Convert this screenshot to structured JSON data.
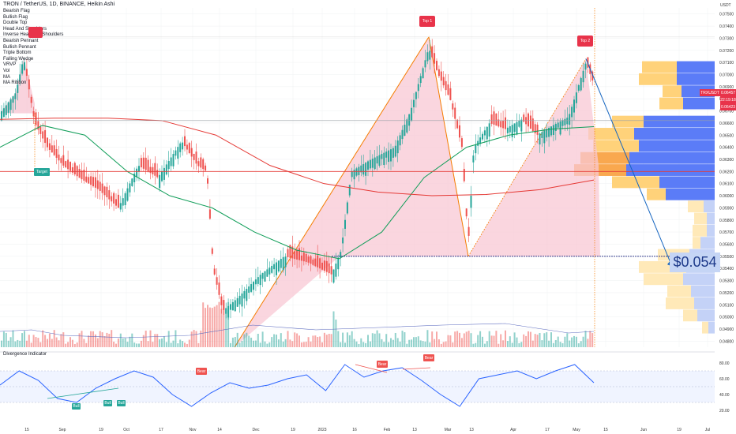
{
  "header": {
    "title": "TRON / TetherUS, 1D, BINANCE, Heikin Ashi"
  },
  "pattern_list": [
    "Bearish Flag",
    "Bullish Flag",
    "Double Top",
    "Head And Shoulders",
    "Inverse Head And Shoulders",
    "Bearish Pennant",
    "Bullish Pennant",
    "Triple Bottom",
    "Falling Wedge",
    "VRVP",
    "Vol",
    "MA",
    "MA Ribbon"
  ],
  "annotations": {
    "top1": "Top 1",
    "top2": "Top 2",
    "target": "Target",
    "target_price": "$0.054",
    "bear": "Bear",
    "bull": "Bull"
  },
  "price_labels": {
    "symbol": "TRXUSDT",
    "last": "0.06457",
    "countdown": "22:19:18",
    "ma": "0.06423"
  },
  "oscillator": {
    "title": "Divergence Indicator",
    "levels": [
      "80.00",
      "60.00",
      "40.00",
      "20.00"
    ]
  },
  "colors": {
    "up": "#26a69a",
    "down": "#ef5350",
    "pattern_fill": "#f8c8d4",
    "pattern_line": "#f57c00",
    "ma_green": "#0f9d58",
    "ma_red": "#e53935",
    "vp_blue": "#5b7cf7",
    "vp_yellow": "#ffd27a",
    "osc_line": "#2962ff"
  },
  "chart_data": {
    "type": "candlestick",
    "title": "TRON / TetherUS, 1D, BINANCE, Heikin Ashi",
    "y_axis": {
      "label": "USDT",
      "ticks": [
        "0.07500",
        "0.07400",
        "0.07300",
        "0.07200",
        "0.07100",
        "0.07000",
        "0.06900",
        "0.06800",
        "0.06700",
        "0.06600",
        "0.06500",
        "0.06400",
        "0.06300",
        "0.06200",
        "0.06100",
        "0.06000",
        "0.05900",
        "0.05800",
        "0.05700",
        "0.05600",
        "0.05500",
        "0.05400",
        "0.05300",
        "0.05200",
        "0.05100",
        "0.05000",
        "0.04900",
        "0.04800"
      ],
      "range": [
        0.0475,
        0.0755
      ]
    },
    "x_axis": {
      "labels": [
        "15",
        "Sep",
        "19",
        "Oct",
        "17",
        "Nov",
        "14",
        "Dec",
        "19",
        "2023",
        "16",
        "Feb",
        "13",
        "Mar",
        "13",
        "Apr",
        "17",
        "May",
        "15",
        "Jun",
        "19",
        "Jul"
      ]
    },
    "key_levels": {
      "top1": 0.0731,
      "top2": 0.0713,
      "neckline": 0.055,
      "resistance": 0.0662,
      "support": 0.062,
      "target": 0.054
    },
    "moving_averages": [
      {
        "color": "green",
        "points": [
          0.064,
          0.0658,
          0.065,
          0.062,
          0.06,
          0.059,
          0.057,
          0.0555,
          0.0548,
          0.057,
          0.0615,
          0.064,
          0.065,
          0.0655,
          0.0657
        ]
      },
      {
        "color": "red",
        "points": [
          0.0663,
          0.0664,
          0.0664,
          0.0662,
          0.065,
          0.0625,
          0.061,
          0.0603,
          0.06,
          0.0601,
          0.0605,
          0.0613
        ]
      }
    ],
    "current_price": 0.06457,
    "oscillator": {
      "name": "Divergence Indicator",
      "ticks": [
        80,
        60,
        40,
        20
      ],
      "range": [
        10,
        90
      ],
      "points": [
        52,
        70,
        58,
        35,
        30,
        48,
        60,
        70,
        62,
        40,
        25,
        42,
        55,
        48,
        52,
        60,
        65,
        45,
        78,
        62,
        70,
        74,
        58,
        40,
        25,
        60,
        65,
        70,
        60,
        70,
        78,
        55
      ]
    }
  }
}
